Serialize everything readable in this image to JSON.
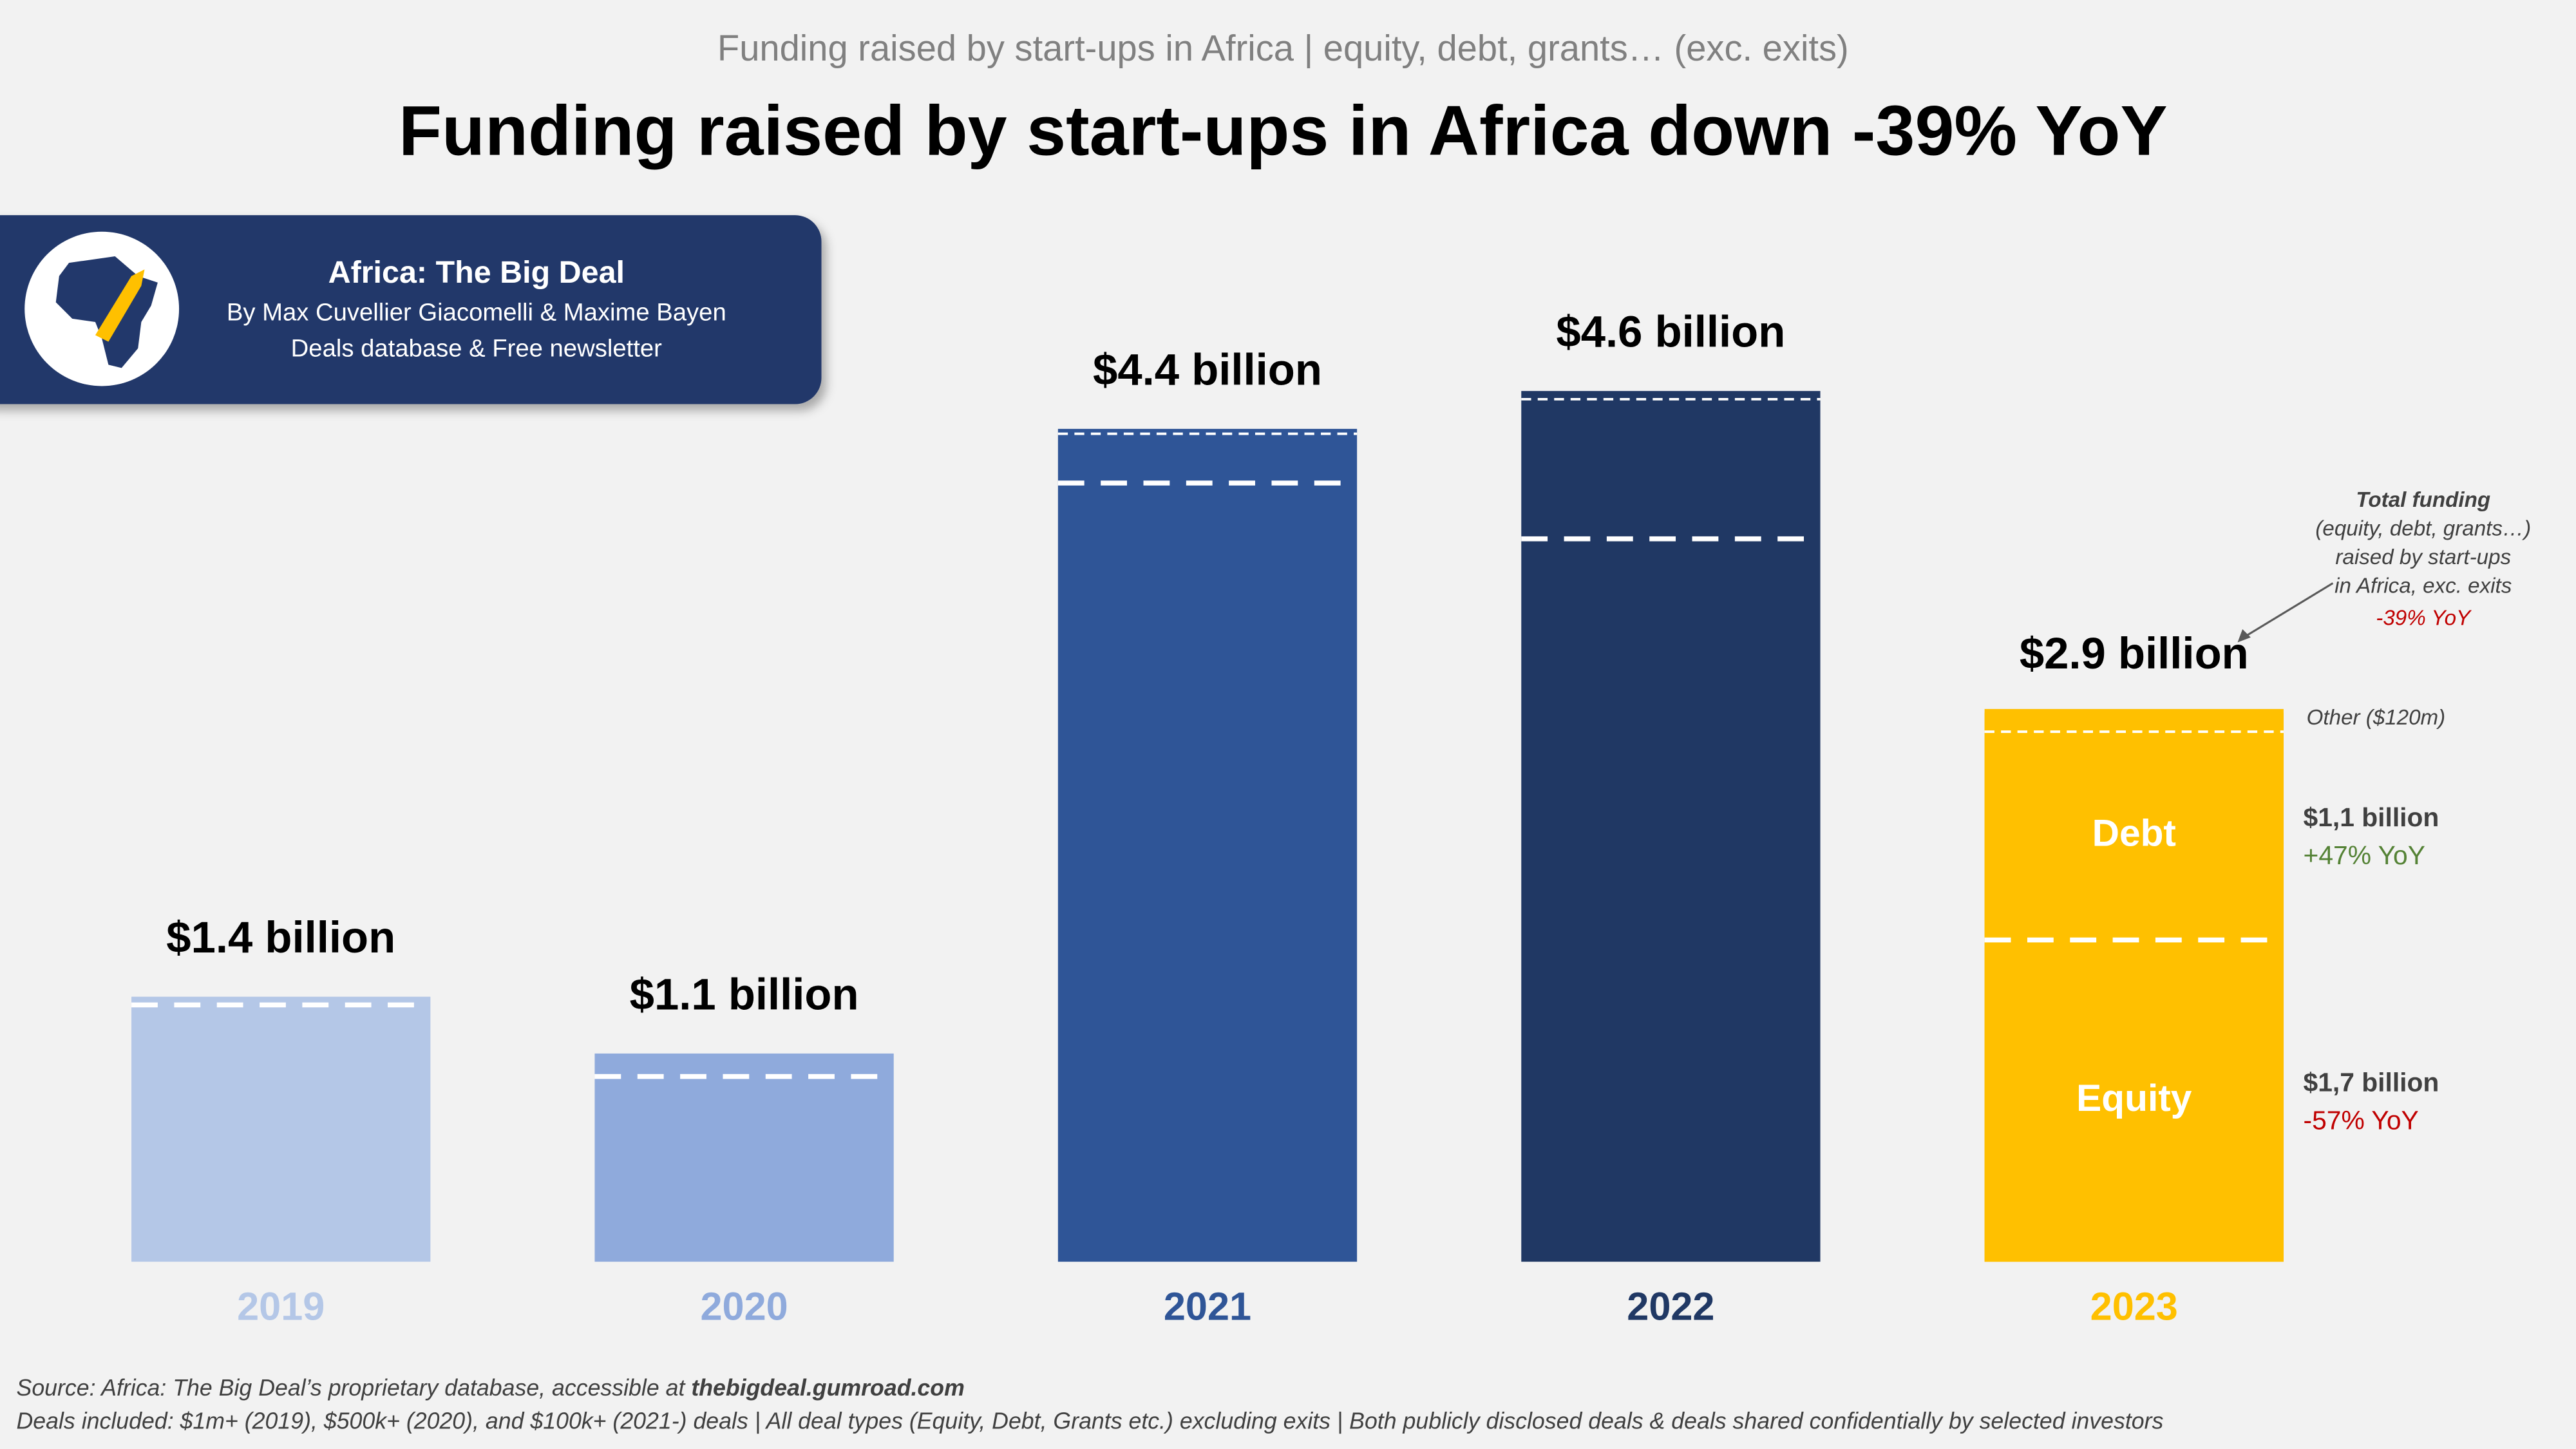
{
  "chart_data": {
    "type": "bar",
    "subtitle": "Funding raised by start-ups in Africa | equity, debt, grants… (exc. exits)",
    "title": "Funding raised by start-ups in Africa down -39% YoY",
    "badge": {
      "name": "Africa: The Big Deal",
      "authors": "By Max Cuvellier Giacomelli & Maxime Bayen",
      "tagline": "Deals database & Free newsletter"
    },
    "categories": [
      "2019",
      "2020",
      "2021",
      "2022",
      "2023"
    ],
    "values": [
      1.4,
      1.1,
      4.4,
      4.6,
      2.9
    ],
    "value_labels": [
      "$1.4 billion",
      "$1.1 billion",
      "$4.4 billion",
      "$4.6 billion",
      "$2.9 billion"
    ],
    "colors": [
      "#b4c7e7",
      "#8faadc",
      "#2f5597",
      "#203864",
      "#ffc000"
    ],
    "breakdown": {
      "category": "2023",
      "segments": [
        {
          "name": "Equity",
          "value": 1.7,
          "label": "$1,7 billion",
          "change": "-57% YoY",
          "change_color": "#c00000"
        },
        {
          "name": "Debt",
          "value": 1.1,
          "label": "$1,1 billion",
          "change": "+47% YoY",
          "change_color": "#548235"
        },
        {
          "name": "Other ($120m)",
          "value": 0.12
        }
      ]
    },
    "annotation": {
      "lines": [
        "Total funding",
        "(equity, debt, grants…)",
        "raised by start-ups",
        "in Africa, exc. exits"
      ],
      "change": "-39% YoY"
    },
    "source": {
      "prefix": "Source: Africa: The Big Deal’s proprietary database, accessible at ",
      "link": "thebigdeal.gumroad.com"
    },
    "note": "Deals included:  $1m+ (2019), $500k+ (2020), and $100k+ (2021-) deals | All deal types (Equity, Debt, Grants etc.) excluding exits | Both publicly disclosed deals & deals shared confidentially by selected investors"
  }
}
